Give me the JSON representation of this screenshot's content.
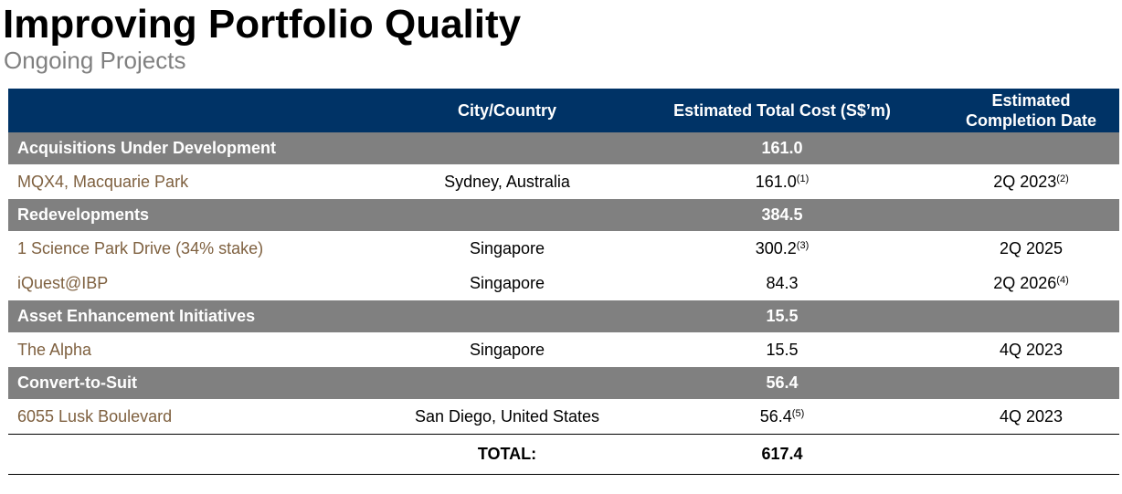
{
  "header": {
    "title": "Improving Portfolio Quality",
    "subtitle": "Ongoing Projects"
  },
  "table": {
    "columns": [
      "City/Country",
      "Estimated Total Cost (S$’m)",
      "Estimated Completion Date"
    ],
    "sections": [
      {
        "name": "Acquisitions Under Development",
        "total": "161.0",
        "rows": [
          {
            "project": "MQX4, Macquarie Park",
            "location": "Sydney, Australia",
            "cost": "161.0",
            "cost_note": "(1)",
            "completion": "2Q 2023",
            "completion_note": "(2)"
          }
        ]
      },
      {
        "name": "Redevelopments",
        "total": "384.5",
        "rows": [
          {
            "project": "1 Science Park Drive (34% stake)",
            "location": "Singapore",
            "cost": "300.2",
            "cost_note": "(3)",
            "completion": "2Q 2025"
          },
          {
            "project": "iQuest@IBP",
            "location": "Singapore",
            "cost": "84.3",
            "completion": "2Q 2026",
            "completion_note": "(4)"
          }
        ]
      },
      {
        "name": "Asset Enhancement Initiatives",
        "total": "15.5",
        "rows": [
          {
            "project": "The Alpha",
            "location": "Singapore",
            "cost": "15.5",
            "completion": "4Q 2023"
          }
        ]
      },
      {
        "name": "Convert-to-Suit",
        "total": "56.4",
        "rows": [
          {
            "project": "6055 Lusk Boulevard",
            "location": "San Diego, United States",
            "cost": "56.4",
            "cost_note": "(5)",
            "completion": "4Q 2023"
          }
        ]
      }
    ],
    "total_label": "TOTAL:",
    "total": "617.4"
  }
}
